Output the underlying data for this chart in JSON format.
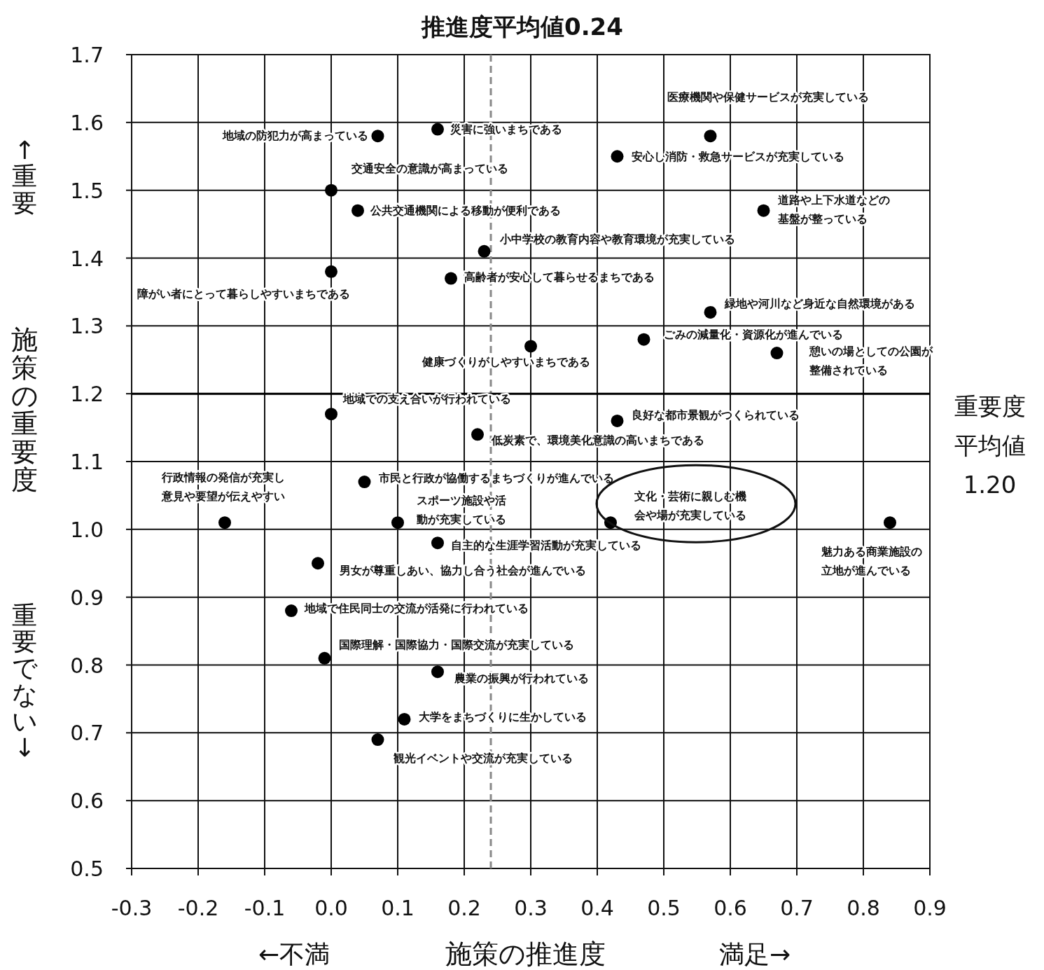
{
  "chart_data": {
    "type": "scatter",
    "marker": "circle",
    "grid": true,
    "xlabel": "施策の推進度",
    "ylabel": "施策の重要度",
    "xlim": [
      -0.3,
      0.9
    ],
    "ylim": [
      0.5,
      1.7
    ],
    "xticks": [
      -0.3,
      -0.2,
      -0.1,
      {
        "value": 0,
        "label": "0.0"
      },
      0.1,
      0.2,
      0.3,
      0.4,
      0.5,
      0.6,
      0.7,
      0.8,
      0.9
    ],
    "yticks": [
      0.5,
      0.6,
      0.7,
      0.8,
      0.9,
      {
        "value": 1,
        "label": "1.0"
      },
      1.1,
      1.2,
      1.3,
      1.4,
      1.5,
      1.6,
      1.7
    ],
    "series": [
      {
        "color": "#000000",
        "x": [
          0.07,
          0.16,
          0.57,
          0.43,
          0.0,
          0.04,
          0.65,
          0.23,
          0.0,
          0.18,
          0.57,
          0.47,
          0.3,
          0.67,
          0.0,
          0.43,
          0.22,
          -0.16,
          0.05,
          0.1,
          0.42,
          0.84,
          0.16,
          -0.02,
          -0.06,
          -0.01,
          0.16,
          0.11,
          0.07
        ],
        "values": [
          1.58,
          1.59,
          1.58,
          1.55,
          1.5,
          1.47,
          1.47,
          1.41,
          1.38,
          1.37,
          1.32,
          1.28,
          1.27,
          1.26,
          1.17,
          1.16,
          1.14,
          1.01,
          1.07,
          1.01,
          1.01,
          1.01,
          0.98,
          0.95,
          0.88,
          0.81,
          0.79,
          0.72,
          0.69
        ]
      }
    ],
    "ref_lines": [
      {
        "axis": "x",
        "value": 0.24,
        "label": "推進度平均値0.24",
        "color": "#888888",
        "line_style": "dashed"
      },
      {
        "axis": "y",
        "value": 1.2,
        "label": "重要度平均値1.20",
        "color": "#000000",
        "line_style": "solid"
      }
    ],
    "annotations": [
      {
        "text": "地域の防犯力が高まっている",
        "x": 0.07,
        "y": 1.58
      },
      {
        "text": "災害に強いまちである",
        "x": 0.16,
        "y": 1.59
      },
      {
        "text": "医療機関や保健サービスが充実している",
        "x": 0.57,
        "y": 1.58
      },
      {
        "text": "安心し消防・救急サービスが充実している",
        "x": 0.43,
        "y": 1.55
      },
      {
        "text": "交通安全の意識が高まっている",
        "x": 0.0,
        "y": 1.5
      },
      {
        "text": "公共交通機関による移動が便利である",
        "x": 0.04,
        "y": 1.47
      },
      {
        "text": "道路や上下水道などの基盤が整っている",
        "x": 0.65,
        "y": 1.47
      },
      {
        "text": "小中学校の教育内容や教育環境が充実している",
        "x": 0.23,
        "y": 1.41
      },
      {
        "text": "障がい者にとって暮らしやすいまちである",
        "x": 0.0,
        "y": 1.38
      },
      {
        "text": "高齢者が安心して暮らせるまちである",
        "x": 0.18,
        "y": 1.37
      },
      {
        "text": "緑地や河川など身近な自然環境がある",
        "x": 0.57,
        "y": 1.32
      },
      {
        "text": "ごみの減量化・資源化が進んでいる",
        "x": 0.47,
        "y": 1.28
      },
      {
        "text": "健康づくりがしやすいまちである",
        "x": 0.3,
        "y": 1.27
      },
      {
        "text": "憩いの場としての公園が整備されている",
        "x": 0.67,
        "y": 1.26
      },
      {
        "text": "地域での支え合いが行われている",
        "x": 0.0,
        "y": 1.17
      },
      {
        "text": "良好な都市景観がつくられている",
        "x": 0.43,
        "y": 1.16
      },
      {
        "text": "低炭素で、環境美化意識の高いまちである",
        "x": 0.22,
        "y": 1.14
      },
      {
        "text": "行政情報の発信が充実し意見や要望が伝えやすい",
        "x": -0.16,
        "y": 1.01
      },
      {
        "text": "市民と行政が協働するまちづくりが進んでいる",
        "x": 0.05,
        "y": 1.07
      },
      {
        "text": "スポーツ施設や活動が充実している",
        "x": 0.1,
        "y": 1.01
      },
      {
        "text": "文化・芸術に親しむ機会や場が充実している",
        "x": 0.42,
        "y": 1.01
      },
      {
        "text": "魅力ある商業施設の立地が進んでいる",
        "x": 0.84,
        "y": 1.01
      },
      {
        "text": "自主的な生涯学習活動が充実している",
        "x": 0.16,
        "y": 0.98
      },
      {
        "text": "男女が尊重しあい、協力し合う社会が進んでいる",
        "x": -0.02,
        "y": 0.95
      },
      {
        "text": "地域で住民同士の交流が活発に行われている",
        "x": -0.06,
        "y": 0.88
      },
      {
        "text": "国際理解・国際協力・国際交流が充実している",
        "x": -0.01,
        "y": 0.81
      },
      {
        "text": "農業の振興が行われている",
        "x": 0.16,
        "y": 0.79
      },
      {
        "text": "大学をまちづくりに生かしている",
        "x": 0.11,
        "y": 0.72
      },
      {
        "text": "観光イベントや交流が充実している",
        "x": 0.07,
        "y": 0.69
      },
      "←不満",
      "満足→",
      "↑重要",
      "重要でない↓"
    ]
  }
}
